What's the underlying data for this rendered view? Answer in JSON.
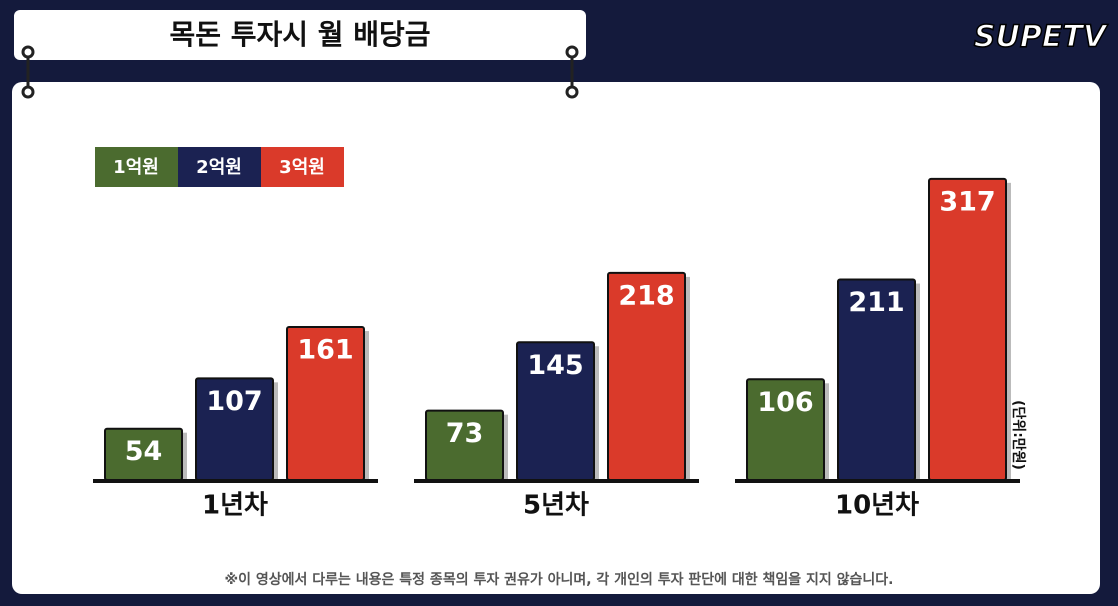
{
  "chart_data": {
    "type": "bar",
    "title": "목돈 투자시 월 배당금",
    "logo": "SUPETV",
    "unit": "(단위:만원)",
    "footnote": "※이 영상에서 다루는 내용은 특정 종목의 투자 권유가 아니며, 각 개인의 투자 판단에 대한 책임을 지지 않습니다.",
    "categories": [
      "1년차",
      "5년차",
      "10년차"
    ],
    "series": [
      {
        "name": "1억원",
        "color": "#4b6b2f",
        "values": [
          54,
          73,
          106
        ]
      },
      {
        "name": "2억원",
        "color": "#1b2252",
        "values": [
          107,
          145,
          211
        ]
      },
      {
        "name": "3억원",
        "color": "#da3a2a",
        "values": [
          161,
          218,
          317
        ]
      }
    ]
  }
}
